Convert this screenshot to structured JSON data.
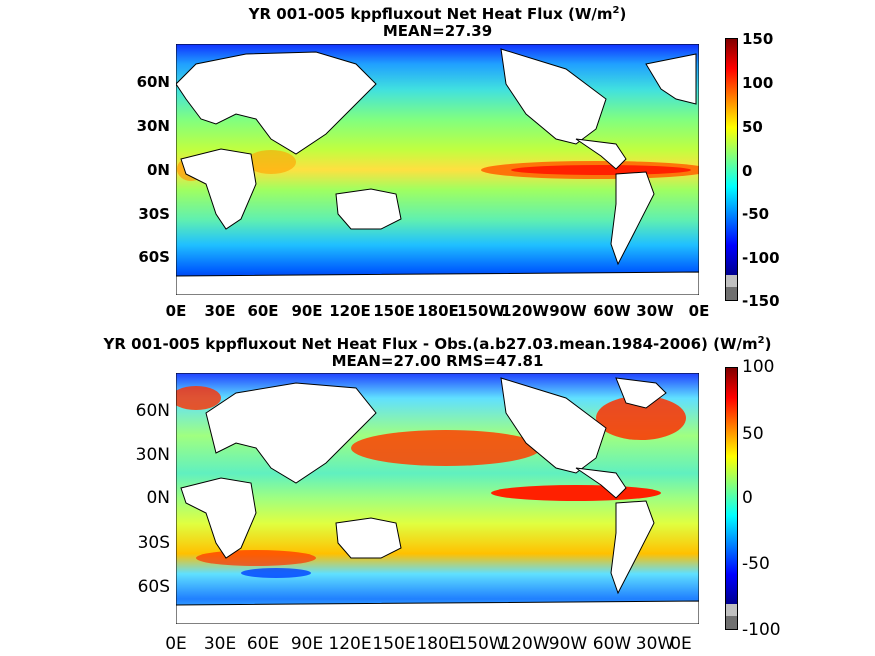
{
  "panel1": {
    "title_line1_pre": "YR 001-005 kppfluxout  Net Heat Flux (W/m",
    "title_sup": "2",
    "title_line1_post": ")",
    "title_line2": "MEAN=27.39",
    "y_ticks": [
      "60N",
      "30N",
      "0N",
      "30S",
      "60S"
    ],
    "x_ticks": [
      "0E",
      "30E",
      "60E",
      "90E",
      "120E",
      "150E",
      "180E",
      "150W",
      "120W",
      "90W",
      "60W",
      "30W",
      "0E"
    ],
    "colorbar_ticks": [
      "150",
      "100",
      "50",
      "0",
      "-50",
      "-100",
      "-150"
    ]
  },
  "panel2": {
    "title_line1_pre": "YR 001-005 kppfluxout  Net Heat Flux - Obs.(a.b27.03.mean.1984-2006) (W/m",
    "title_sup": "2",
    "title_line1_post": ")",
    "title_line2": "MEAN=27.00 RMS=47.81",
    "y_ticks": [
      "60N",
      "30N",
      "0N",
      "30S",
      "60S"
    ],
    "x_ticks": [
      "0E",
      "30E",
      "60E",
      "90E",
      "120E",
      "150E",
      "180E",
      "150W",
      "120W",
      "90W",
      "60W",
      "30W",
      "0E"
    ],
    "colorbar_ticks": [
      "100",
      "50",
      "0",
      "-50",
      "-100"
    ]
  },
  "colors": {
    "colormap": [
      "#00008f",
      "#0000ff",
      "#0080ff",
      "#00ffff",
      "#80ff80",
      "#ffff00",
      "#ff8000",
      "#ff0000",
      "#800000"
    ],
    "land": "#ffffff",
    "ice": "#c0c0c0",
    "undef": "#707070"
  }
}
